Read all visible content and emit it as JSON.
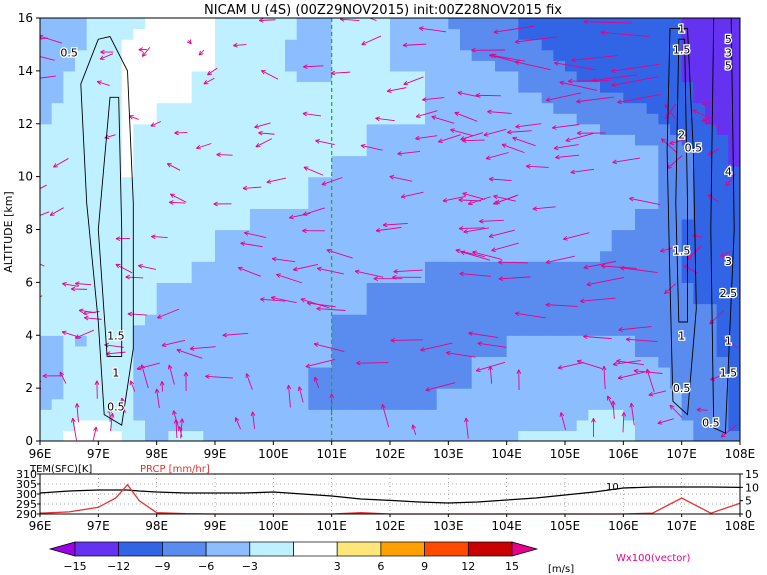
{
  "title": "NICAM U (4S) (00Z29NOV2015) init:00Z28NOV2015 fix",
  "main": {
    "ylabel": "ALTITUDE [km]",
    "xticks": [
      "96E",
      "97E",
      "98E",
      "99E",
      "100E",
      "101E",
      "102E",
      "103E",
      "104E",
      "105E",
      "106E",
      "107E",
      "108E"
    ],
    "yticks": [
      "0",
      "2",
      "4",
      "6",
      "8",
      "10",
      "12",
      "14",
      "16"
    ],
    "contour_labels": [
      {
        "text": "0.5",
        "lon": 96.5,
        "alt": 14.7
      },
      {
        "text": "1.5",
        "lon": 97.3,
        "alt": 4.0
      },
      {
        "text": "1",
        "lon": 97.3,
        "alt": 2.6
      },
      {
        "text": "0.5",
        "lon": 97.3,
        "alt": 1.3
      },
      {
        "text": "1",
        "lon": 107.0,
        "alt": 15.6
      },
      {
        "text": "1.5",
        "lon": 107.0,
        "alt": 14.8
      },
      {
        "text": "2",
        "lon": 107.0,
        "alt": 11.6
      },
      {
        "text": "0.5",
        "lon": 107.2,
        "alt": 11.1
      },
      {
        "text": "1.5",
        "lon": 107.0,
        "alt": 7.2
      },
      {
        "text": "1",
        "lon": 107.0,
        "alt": 4.0
      },
      {
        "text": "0.5",
        "lon": 107.0,
        "alt": 2.0
      },
      {
        "text": "0.5",
        "lon": 107.5,
        "alt": 0.7
      },
      {
        "text": "4",
        "lon": 107.8,
        "alt": 10.2
      },
      {
        "text": "3",
        "lon": 107.8,
        "alt": 6.8
      },
      {
        "text": "2.5",
        "lon": 107.8,
        "alt": 5.6
      },
      {
        "text": "1",
        "lon": 107.8,
        "alt": 3.8
      },
      {
        "text": "1.5",
        "lon": 107.8,
        "alt": 2.6
      },
      {
        "text": "5",
        "lon": 107.8,
        "alt": 15.2
      },
      {
        "text": "3",
        "lon": 107.8,
        "alt": 14.7
      },
      {
        "text": "5",
        "lon": 107.8,
        "alt": 14.2
      }
    ],
    "reference_lon": 101.0
  },
  "sub": {
    "left_label": "TEM(SFC)[K]",
    "right_label": "PRCP [mm/hr]",
    "left_ticks": [
      "310",
      "305",
      "300",
      "295",
      "290"
    ],
    "right_ticks": [
      "15",
      "10",
      "5",
      "0"
    ],
    "inline_label": "10",
    "xticks": [
      "96E",
      "97E",
      "98E",
      "99E",
      "100E",
      "101E",
      "102E",
      "103E",
      "104E",
      "105E",
      "106E",
      "107E",
      "108E"
    ]
  },
  "colorbar": {
    "labels": [
      "-15",
      "-12",
      "-9",
      "-6",
      "-3",
      "3",
      "6",
      "9",
      "12",
      "15"
    ],
    "unit": "[m/s]",
    "colors": [
      "#9b00e6",
      "#6432f0",
      "#3264e6",
      "#5a8cf0",
      "#8cbeff",
      "#bef0ff",
      "#ffffff",
      "#ffe678",
      "#ffa000",
      "#ff4b00",
      "#c80000",
      "#e6008c"
    ]
  },
  "legend_text": "Wx100(vector)",
  "chart_data": [
    {
      "type": "heatmap",
      "title": "NICAM U (4S) (00Z29NOV2015) init:00Z28NOV2015 fix",
      "xlabel": "",
      "ylabel": "ALTITUDE [km]",
      "xlim": [
        96,
        108
      ],
      "ylim": [
        0,
        16
      ],
      "units": "m/s",
      "levels": [
        -15,
        -12,
        -9,
        -6,
        -3,
        3,
        6,
        9,
        12,
        15
      ],
      "x": [
        96,
        96.5,
        97,
        97.5,
        98,
        98.5,
        99,
        99.5,
        100,
        100.5,
        101,
        101.5,
        102,
        102.5,
        103,
        103.5,
        104,
        104.5,
        105,
        105.5,
        106,
        106.5,
        107,
        107.5,
        108
      ],
      "y": [
        0,
        1,
        2,
        3,
        4,
        5,
        6,
        7,
        8,
        9,
        10,
        11,
        12,
        13,
        14,
        15,
        16
      ],
      "z": [
        [
          -4,
          -2,
          4,
          -4,
          -6,
          -5,
          -6,
          -7,
          -7,
          -7,
          -7,
          -8,
          -8,
          -8,
          -7,
          -7,
          -6,
          -5,
          -5,
          -5,
          -5,
          -7,
          -8,
          -10,
          -12
        ],
        [
          -6,
          -5,
          -4,
          -6,
          -8,
          -7,
          -8,
          -8,
          -9,
          -9,
          -9,
          -9,
          -9,
          -9,
          -8,
          -8,
          -8,
          -7,
          -7,
          -6,
          -6,
          -8,
          -9,
          -11,
          -13
        ],
        [
          -7,
          -6,
          -5,
          -6,
          -8,
          -8,
          -9,
          -9,
          -9,
          -9,
          -10,
          -10,
          -10,
          -10,
          -9,
          -9,
          -9,
          -8,
          -8,
          -7,
          -7,
          -8,
          -9,
          -11,
          -13
        ],
        [
          -7,
          -6,
          -6,
          -6,
          -7,
          -8,
          -8,
          -8,
          -9,
          -9,
          -9,
          -10,
          -10,
          -10,
          -10,
          -9,
          -9,
          -9,
          -8,
          -8,
          -8,
          -9,
          -10,
          -11,
          -13
        ],
        [
          -6,
          -6,
          -6,
          -6,
          -7,
          -7,
          -8,
          -8,
          -8,
          -8,
          -9,
          -10,
          -10,
          -10,
          -10,
          -10,
          -9,
          -9,
          -9,
          -9,
          -9,
          -10,
          -10,
          -12,
          -13
        ],
        [
          -6,
          -5,
          -5,
          -5,
          -6,
          -7,
          -7,
          -7,
          -8,
          -8,
          -9,
          -9,
          -10,
          -10,
          -10,
          -10,
          -10,
          -10,
          -10,
          -10,
          -11,
          -11,
          -11,
          -12,
          -14
        ],
        [
          -5,
          -5,
          -5,
          -5,
          -6,
          -6,
          -7,
          -7,
          -7,
          -8,
          -8,
          -9,
          -9,
          -9,
          -10,
          -10,
          -10,
          -10,
          -10,
          -10,
          -12,
          -12,
          -12,
          -13,
          -14
        ],
        [
          -5,
          -4,
          -4,
          -5,
          -5,
          -6,
          -6,
          -7,
          -7,
          -7,
          -8,
          -8,
          -8,
          -9,
          -9,
          -9,
          -9,
          -9,
          -9,
          -9,
          -10,
          -11,
          -12,
          -13,
          -14
        ],
        [
          -5,
          -4,
          -4,
          -4,
          -5,
          -5,
          -6,
          -6,
          -7,
          -7,
          -7,
          -8,
          -8,
          -8,
          -8,
          -8,
          -8,
          -8,
          -8,
          -8,
          -9,
          -10,
          -12,
          -13,
          -15
        ],
        [
          -5,
          -4,
          -3,
          -4,
          -4,
          -5,
          -5,
          -6,
          -6,
          -6,
          -7,
          -7,
          -7,
          -7,
          -7,
          -7,
          -7,
          -7,
          -7,
          -8,
          -8,
          -9,
          -11,
          -13,
          -15
        ],
        [
          -5,
          -4,
          -3,
          -3,
          -4,
          -4,
          -5,
          -5,
          -6,
          -6,
          -6,
          -7,
          -7,
          -7,
          -7,
          -7,
          -7,
          -7,
          -7,
          -7,
          -8,
          -9,
          -11,
          -13,
          -15
        ],
        [
          -6,
          -5,
          -4,
          -3,
          -4,
          -4,
          -5,
          -5,
          -5,
          -6,
          -6,
          -6,
          -7,
          -7,
          -7,
          -7,
          -7,
          -7,
          -7,
          -8,
          -8,
          -9,
          -11,
          -13,
          -16
        ],
        [
          -6,
          -5,
          -4,
          -3,
          -3,
          -4,
          -4,
          -5,
          -5,
          -5,
          -6,
          -6,
          -6,
          -6,
          -7,
          -7,
          -7,
          -8,
          -8,
          -9,
          -10,
          -11,
          -13,
          -15,
          -17
        ],
        [
          -7,
          -6,
          -4,
          -3,
          -3,
          -3,
          -4,
          -4,
          -5,
          -5,
          -6,
          -6,
          -6,
          -6,
          -7,
          -7,
          -8,
          -9,
          -10,
          -11,
          -12,
          -13,
          -14,
          -16,
          -17
        ],
        [
          -7,
          -6,
          -5,
          -3,
          -3,
          -3,
          -3,
          -4,
          -5,
          -7,
          -6,
          -6,
          -6,
          -6,
          -7,
          -8,
          -9,
          -10,
          -12,
          -13,
          -14,
          -15,
          -15,
          -16,
          -17
        ],
        [
          -8,
          -7,
          -5,
          -3,
          -2,
          2,
          -3,
          -4,
          -5,
          -7,
          -6,
          -6,
          -6,
          -7,
          -8,
          -10,
          -11,
          -12,
          -13,
          -14,
          -15,
          -15,
          -15,
          -16,
          -16
        ],
        [
          -8,
          -7,
          -5,
          -4,
          -2,
          -3,
          -3,
          -4,
          -5,
          -6,
          -6,
          -6,
          -6,
          -7,
          -9,
          -11,
          -12,
          -13,
          -14,
          -15,
          -15,
          -15,
          -15,
          -16,
          -16
        ]
      ]
    },
    {
      "type": "line",
      "title": "",
      "x": [
        96,
        96.5,
        97,
        97.3,
        97.5,
        97.7,
        98,
        98.5,
        99,
        99.5,
        100,
        100.5,
        101,
        101.5,
        102,
        102.5,
        103,
        103.5,
        104,
        104.5,
        105,
        105.5,
        106,
        106.5,
        107,
        107.5,
        108
      ],
      "series": [
        {
          "name": "TEM(SFC)[K]",
          "axis": "left",
          "ylim": [
            290,
            310
          ],
          "values": [
            300.5,
            301.5,
            302,
            302,
            302,
            301.5,
            301,
            300.5,
            300.5,
            300.5,
            301,
            300,
            299,
            297.5,
            296.8,
            296,
            295.5,
            296,
            297,
            298,
            299.5,
            301,
            303,
            303.5,
            303.5,
            303.5,
            303.3
          ]
        },
        {
          "name": "PRCP [mm/hr]",
          "axis": "right",
          "ylim": [
            0,
            15
          ],
          "values": [
            0.3,
            0.8,
            2.5,
            6,
            11,
            5,
            0.5,
            0.1,
            0,
            0,
            0,
            0,
            0,
            0.5,
            0,
            0,
            0,
            0,
            0,
            0,
            0,
            0,
            0,
            0.3,
            6,
            0.3,
            4
          ]
        }
      ]
    }
  ]
}
